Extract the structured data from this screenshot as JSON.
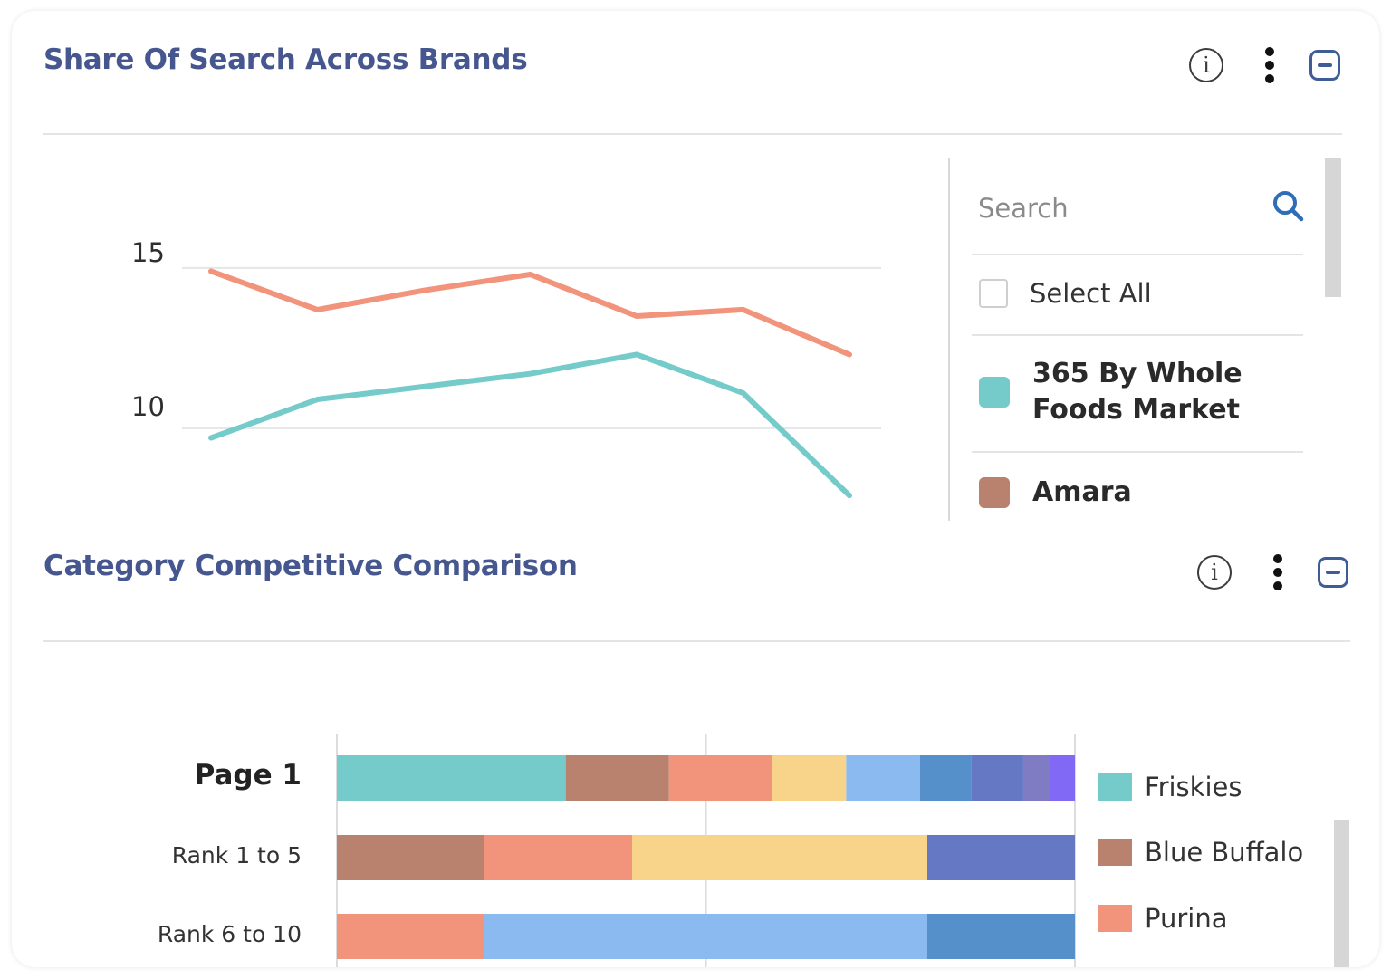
{
  "widget1": {
    "title": "Share Of Search Across Brands",
    "search_placeholder": "Search",
    "select_all_label": "Select All",
    "brands": [
      {
        "label": "365 By Whole\nFoods Market",
        "color": "#74cbc9"
      },
      {
        "label": "Amara",
        "color": "#b8826f"
      }
    ]
  },
  "widget2": {
    "title": "Category Competitive Comparison",
    "legend": [
      {
        "label": "Friskies",
        "color": "#74cbc9"
      },
      {
        "label": "Blue Buffalo",
        "color": "#b8826f"
      },
      {
        "label": "Purina",
        "color": "#f2937b"
      }
    ]
  },
  "icons": {
    "info": "info-icon",
    "menu": "kebab-menu-icon",
    "collapse": "collapse-icon",
    "search": "search-icon"
  },
  "chart_data": [
    {
      "type": "line",
      "title": "Share Of Search Across Brands",
      "yticks": [
        10,
        15
      ],
      "ylim": [
        7.2,
        18.5
      ],
      "x": [
        1,
        2,
        3,
        4,
        5,
        6,
        7
      ],
      "series": [
        {
          "color": "#f2937b",
          "values": [
            14.9,
            13.7,
            14.3,
            14.8,
            13.5,
            13.7,
            12.3
          ]
        },
        {
          "color": "#74cbc9",
          "values": [
            9.7,
            10.9,
            11.3,
            11.7,
            12.3,
            11.1,
            7.9
          ]
        }
      ],
      "grid": true
    },
    {
      "type": "bar",
      "orientation": "horizontal",
      "stacked": true,
      "title": "Category Competitive Comparison",
      "categories": [
        "Page 1",
        "Rank 1 to 5",
        "Rank 6 to 10"
      ],
      "segment_colors": [
        "#74cbc9",
        "#b8826f",
        "#f2937b",
        "#f8d48a",
        "#8abaf0",
        "#5690ca",
        "#6478c4",
        "#7f7cc4",
        "#8168f5"
      ],
      "rows": [
        [
          31,
          14,
          14,
          10,
          10,
          7,
          7,
          3.5,
          3.5
        ],
        [
          0,
          20,
          20,
          40,
          0,
          0,
          20,
          0,
          0
        ],
        [
          0,
          0,
          20,
          0,
          60,
          20,
          0,
          0,
          0
        ]
      ],
      "xlim": [
        0,
        100
      ],
      "grid": true
    }
  ]
}
